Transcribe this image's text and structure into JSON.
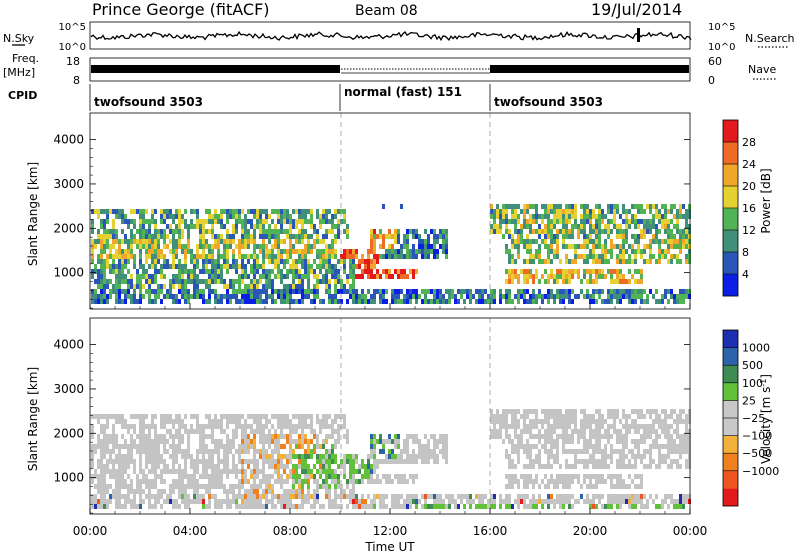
{
  "header": {
    "title": "Prince George (fitACF)",
    "beam": "Beam 08",
    "date": "19/Jul/2014"
  },
  "top_panels": {
    "nsky_label": "N.Sky",
    "nsky_ticks": [
      "10^5",
      "10^0"
    ],
    "nsky_right_ticks": [
      "10^5",
      "10^0"
    ],
    "nsearch_label": "N.Search",
    "freq_label": "Freq.",
    "freq_unit": "[MHz]",
    "freq_ticks": [
      "18",
      "8"
    ],
    "nave_label": "Nave",
    "nave_ticks": [
      "60",
      "0"
    ],
    "cpid_label": "CPID",
    "modes": [
      {
        "label": "twofsound 3503",
        "start_h": 0,
        "end_h": 10
      },
      {
        "label": "normal (fast) 151",
        "start_h": 10,
        "end_h": 16
      },
      {
        "label": "twofsound 3503",
        "start_h": 16,
        "end_h": 24
      }
    ]
  },
  "colors": {
    "power": [
      "#0a1ee6",
      "#2a56b8",
      "#3f8f7a",
      "#52b354",
      "#e5d232",
      "#f0a62a",
      "#ee6a25",
      "#e31a1c"
    ],
    "velocity": [
      "#e31a1c",
      "#ee5522",
      "#f07f1e",
      "#f2b13a",
      "#c8c8c8",
      "#c8c8c8",
      "#61c23a",
      "#3e8c54",
      "#2c63a8",
      "#1b2fb0"
    ],
    "grey": "#c4c4c4"
  },
  "chart_data": [
    {
      "type": "heatmap",
      "ylabel": "Slant Range [km]",
      "xlabel": "",
      "x_range_hours": [
        0,
        24
      ],
      "ylim": [
        180,
        4600
      ],
      "yticks": [
        "1000",
        "2000",
        "3000",
        "4000"
      ],
      "xticks": [],
      "colorbar": {
        "label": "Power [dB]",
        "range": [
          0,
          32
        ],
        "ticks": [
          "4",
          "8",
          "12",
          "16",
          "20",
          "24",
          "28"
        ]
      }
    },
    {
      "type": "heatmap",
      "ylabel": "Slant Range [km]",
      "xlabel": "Time UT",
      "x_range_hours": [
        0,
        24
      ],
      "ylim": [
        180,
        4600
      ],
      "yticks": [
        "1000",
        "2000",
        "3000",
        "4000"
      ],
      "xticks": [
        "00:00",
        "04:00",
        "08:00",
        "12:00",
        "16:00",
        "20:00",
        "00:00"
      ],
      "colorbar": {
        "label": "Velocity [m s^-1]",
        "ticks": [
          "1000",
          "500",
          "100",
          "25",
          "−25",
          "−100",
          "−500",
          "−1000"
        ]
      }
    }
  ]
}
